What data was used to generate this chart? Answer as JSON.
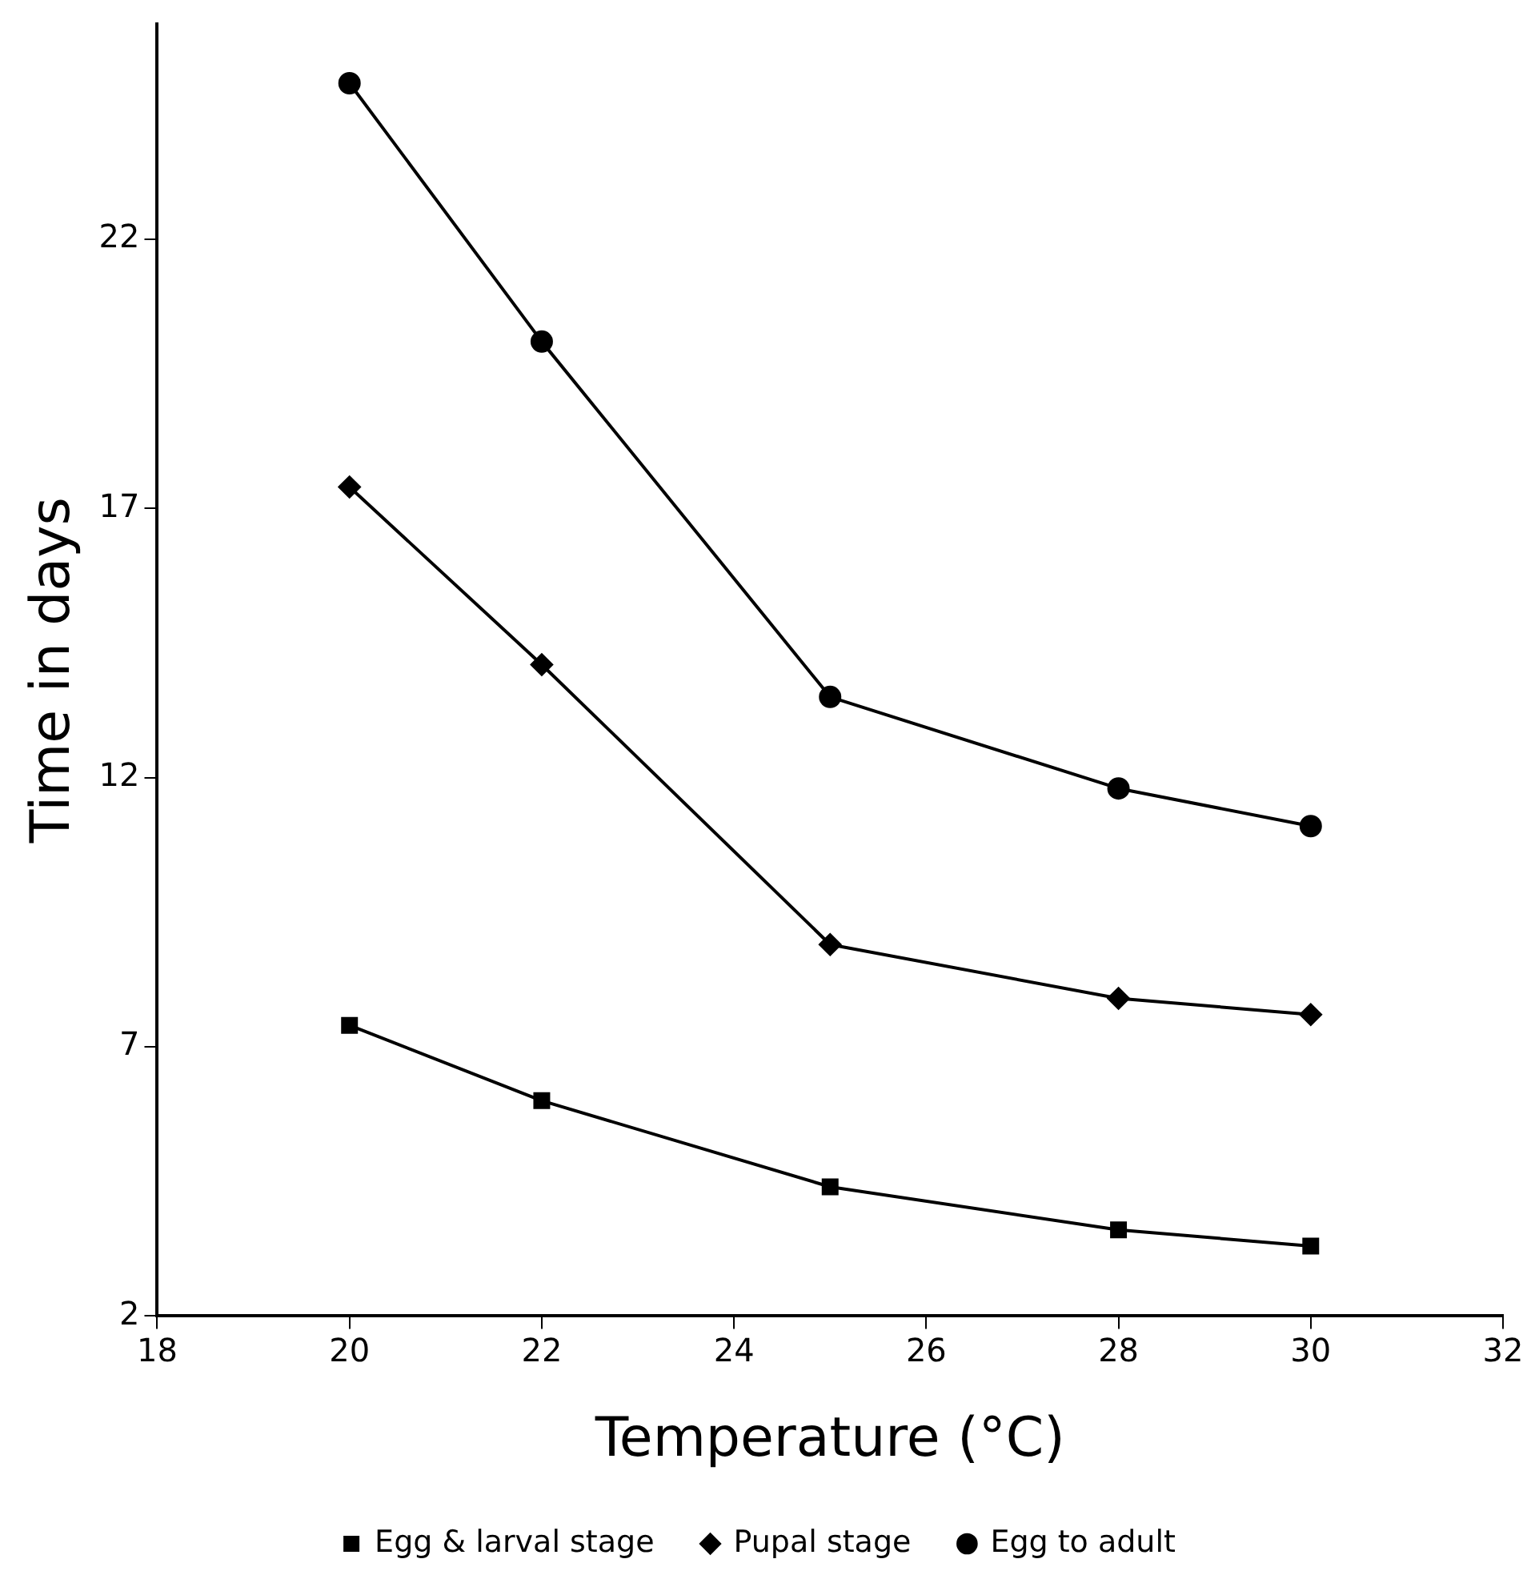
{
  "chart_data": {
    "type": "line",
    "xlabel": "Temperature (°C)",
    "ylabel": "Time in days",
    "x": [
      20,
      22,
      25,
      28,
      30
    ],
    "series": [
      {
        "name": "Egg & larval stage",
        "color": "#000000",
        "marker": "square",
        "values": [
          7.4,
          6.0,
          4.4,
          3.6,
          3.3
        ]
      },
      {
        "name": "Pupal stage",
        "color": "#000000",
        "marker": "diamond",
        "values": [
          17.4,
          14.1,
          8.9,
          7.9,
          7.6
        ]
      },
      {
        "name": "Egg to adult",
        "color": "#000000",
        "marker": "circle",
        "values": [
          24.9,
          20.1,
          13.5,
          11.8,
          11.1
        ]
      }
    ],
    "xlim": [
      18,
      32
    ],
    "xticks": [
      18,
      20,
      22,
      24,
      26,
      28,
      30,
      32
    ],
    "ylim": [
      2,
      26
    ],
    "yticks": [
      2,
      7,
      12,
      17,
      22
    ],
    "grid": false,
    "legend": "bottom",
    "line_style": "solid"
  }
}
